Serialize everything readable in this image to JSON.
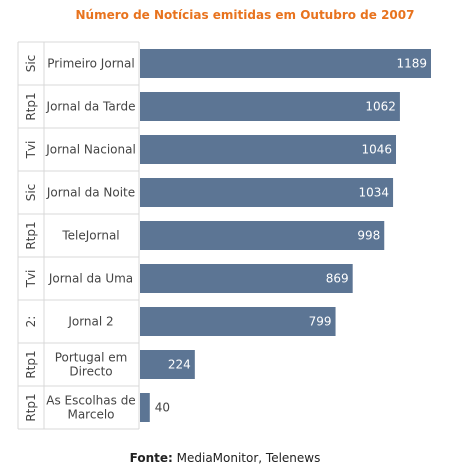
{
  "chart_data": {
    "type": "bar",
    "orientation": "horizontal",
    "title": "Número de Notícias emitidas em Outubro de 2007",
    "groups": [
      "Sic",
      "Rtp1",
      "Tvi",
      "Sic",
      "Rtp1",
      "Tvi",
      "2:",
      "Rtp1",
      "Rtp1"
    ],
    "categories": [
      "Primeiro Jornal",
      "Jornal da Tarde",
      "Jornal Nacional",
      "Jornal da Noite",
      "TeleJornal",
      "Jornal da Uma",
      "Jornal 2",
      "Portugal em Directo",
      "As Escolhas de Marcelo"
    ],
    "category_lines": [
      [
        "Primeiro Jornal"
      ],
      [
        "Jornal da Tarde"
      ],
      [
        "Jornal Nacional"
      ],
      [
        "Jornal da Noite"
      ],
      [
        "TeleJornal"
      ],
      [
        "Jornal da Uma"
      ],
      [
        "Jornal 2"
      ],
      [
        "Portugal em",
        "Directo"
      ],
      [
        "As Escolhas de",
        "Marcelo"
      ]
    ],
    "values": [
      1189,
      1062,
      1046,
      1034,
      998,
      869,
      799,
      224,
      40
    ],
    "xlim": [
      0,
      1189
    ],
    "bar_color": "#5c7594",
    "label_color": "#ffffff",
    "outside_label_color": "#444444"
  },
  "source": {
    "label": "Fonte:",
    "text": "MediaMonitor, Telenews"
  },
  "colors": {
    "title": "#e8731e"
  }
}
